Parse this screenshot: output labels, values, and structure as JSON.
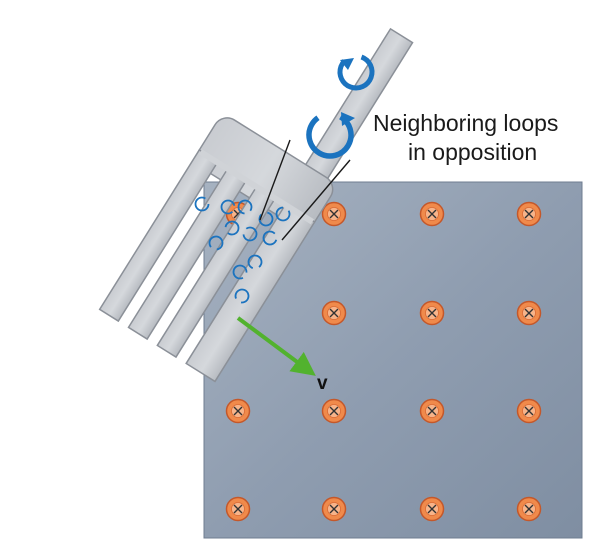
{
  "annotation": {
    "line1": "Neighboring loops",
    "line2": "in opposition"
  },
  "velocity_label": "v",
  "field": {
    "direction": "into page",
    "symbol": "×",
    "rows": 4,
    "cols": 4
  },
  "colors": {
    "field_plate": "#8e9db0",
    "field_marker_fill": "#f08a4b",
    "field_marker_stroke": "#c4582a",
    "fork": "#bfc3c9",
    "fork_edge": "#8b9098",
    "eddy_loops": "#1b73bf",
    "velocity_arrow": "#52b22e"
  },
  "icons": {
    "field_marker": "into-page-x-icon",
    "loop": "circular-arrow-icon"
  }
}
